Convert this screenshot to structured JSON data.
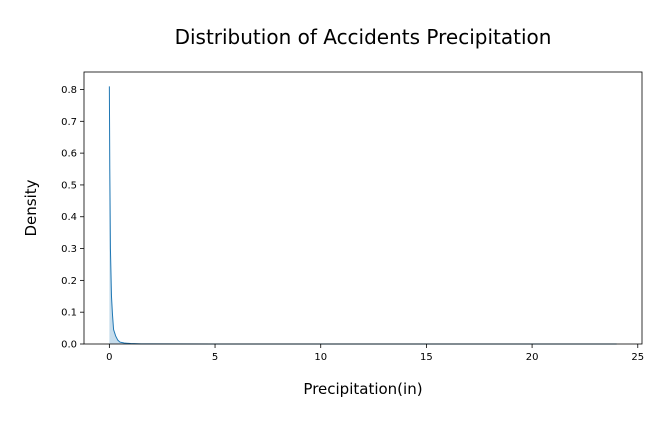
{
  "chart_data": {
    "type": "area",
    "title": "Distribution of Accidents Precipitation",
    "xlabel": "Precipitation(in)",
    "ylabel": "Density",
    "xlim": [
      -1.2,
      25.2
    ],
    "ylim": [
      0,
      0.855
    ],
    "xticks": [
      0,
      5,
      10,
      15,
      20,
      25
    ],
    "yticks": [
      0.0,
      0.1,
      0.2,
      0.3,
      0.4,
      0.5,
      0.6,
      0.7,
      0.8
    ],
    "grid": false,
    "legend": "none",
    "series": [
      {
        "x": [
          0,
          0.02,
          0.05,
          0.1,
          0.15,
          0.2,
          0.3,
          0.4,
          0.5,
          0.7,
          1.0,
          1.5,
          2.0,
          5.0,
          10.0,
          15.0,
          20.0,
          24.0
        ],
        "y": [
          0.81,
          0.55,
          0.3,
          0.15,
          0.09,
          0.045,
          0.025,
          0.012,
          0.006,
          0.003,
          0.0015,
          0.0005,
          0.0002,
          0.0,
          0.0,
          0.0,
          0.0,
          0.0
        ]
      }
    ],
    "colors": {
      "line": "#1f77b4",
      "fill": "#1f77b4"
    }
  }
}
